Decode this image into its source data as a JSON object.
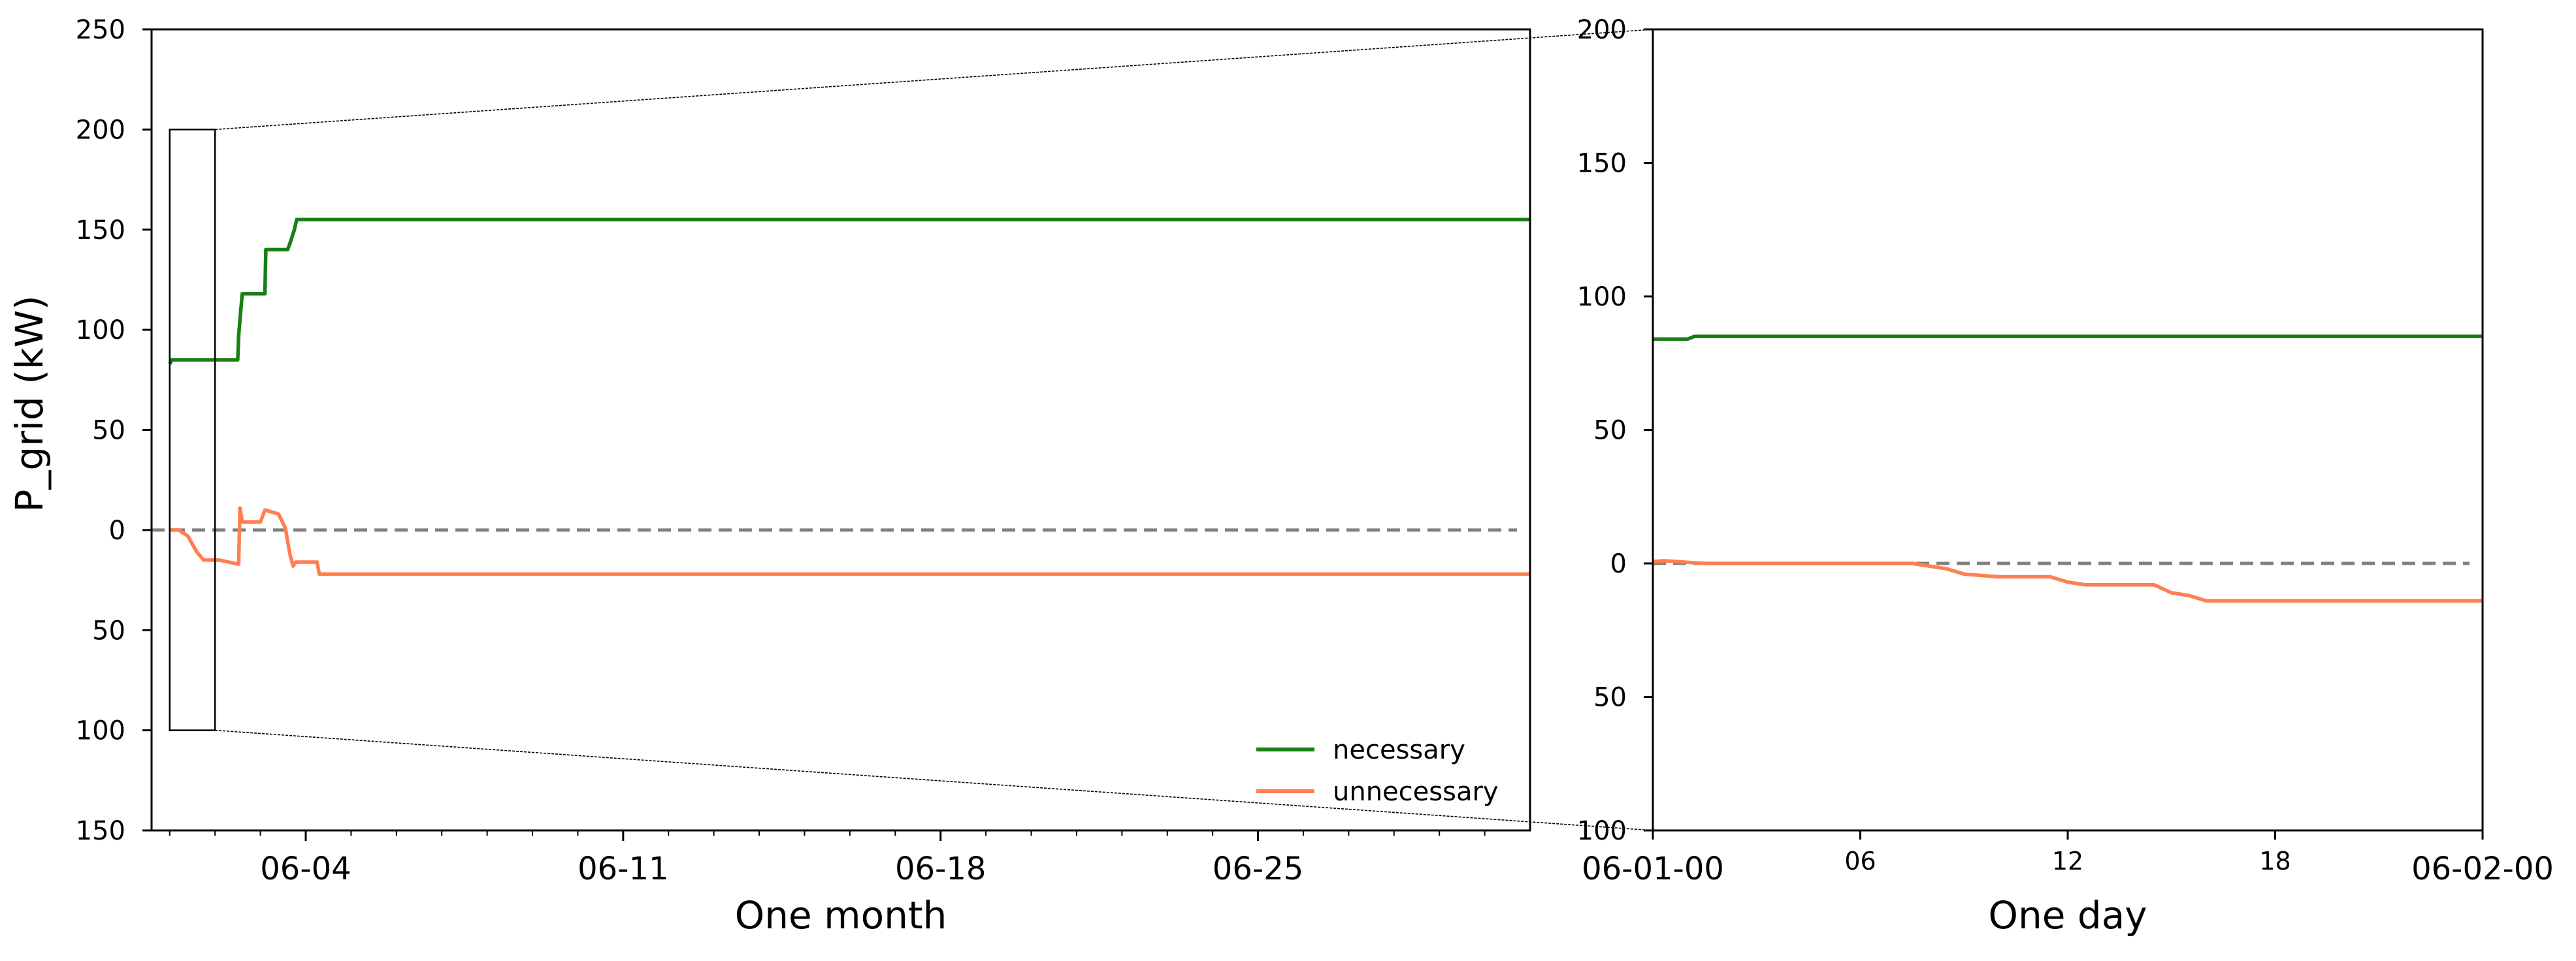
{
  "colors": {
    "necessary": "#1a7f12",
    "unnecessary": "#ff7f50",
    "zero_line": "#808080",
    "axes": "#000000"
  },
  "chart_data": [
    {
      "id": "month",
      "type": "line",
      "title": "",
      "xlabel": "One month",
      "ylabel": "P_grid (kW)",
      "x_unit": "day of June",
      "xlim": [
        0.6,
        31.0
      ],
      "ylim": [
        -150,
        250
      ],
      "yticks": [
        250,
        200,
        150,
        100,
        50,
        0,
        -50,
        -100,
        -150
      ],
      "ytick_labels": [
        "250",
        "200",
        "150",
        "100",
        "50",
        "0",
        "50",
        "100",
        "150"
      ],
      "xticks": [
        4,
        11,
        18,
        25
      ],
      "xtick_labels": [
        "06-04",
        "06-11",
        "06-18",
        "06-25"
      ],
      "grid": false,
      "legend": {
        "position": "bottom-right",
        "entries": [
          "necessary",
          "unnecessary"
        ]
      },
      "zero_line": {
        "y": 0,
        "style": "dashed"
      },
      "zoom_box": {
        "x_from": 1,
        "x_to": 2,
        "y_from": -100,
        "y_to": 200
      },
      "series": [
        {
          "name": "necessary",
          "points": [
            [
              1.0,
              83
            ],
            [
              1.05,
              85
            ],
            [
              2.1,
              85
            ],
            [
              2.5,
              85
            ],
            [
              2.52,
              97
            ],
            [
              2.55,
              105
            ],
            [
              2.6,
              118
            ],
            [
              3.1,
              118
            ],
            [
              3.12,
              140
            ],
            [
              3.6,
              140
            ],
            [
              3.65,
              143
            ],
            [
              3.75,
              150
            ],
            [
              3.8,
              155
            ],
            [
              31.0,
              155
            ]
          ]
        },
        {
          "name": "unnecessary",
          "points": [
            [
              1.0,
              0
            ],
            [
              1.2,
              0
            ],
            [
              1.4,
              -3
            ],
            [
              1.6,
              -11
            ],
            [
              1.75,
              -15
            ],
            [
              2.1,
              -15
            ],
            [
              2.5,
              -17
            ],
            [
              2.52,
              -17
            ],
            [
              2.55,
              11
            ],
            [
              2.6,
              4
            ],
            [
              3.0,
              4
            ],
            [
              3.1,
              10
            ],
            [
              3.4,
              8
            ],
            [
              3.55,
              1
            ],
            [
              3.65,
              -12
            ],
            [
              3.72,
              -18
            ],
            [
              3.78,
              -16
            ],
            [
              4.25,
              -16
            ],
            [
              4.3,
              -22
            ],
            [
              31.0,
              -22
            ]
          ]
        }
      ]
    },
    {
      "id": "day",
      "type": "line",
      "title": "",
      "xlabel": "One day",
      "ylabel": "",
      "x_unit": "hour of 2023-06-01",
      "xlim": [
        0,
        24
      ],
      "ylim": [
        -100,
        200
      ],
      "yticks": [
        200,
        150,
        100,
        50,
        0,
        -50,
        -100
      ],
      "ytick_labels": [
        "200",
        "150",
        "100",
        "50",
        "0",
        "50",
        "100"
      ],
      "xticks": [
        0,
        6,
        12,
        18,
        24
      ],
      "xtick_labels": [
        "06-01-00",
        "06",
        "12",
        "18",
        "06-02-00"
      ],
      "grid": false,
      "zero_line": {
        "y": 0,
        "style": "dashed"
      },
      "series": [
        {
          "name": "necessary",
          "points": [
            [
              -0.5,
              84
            ],
            [
              1.0,
              84
            ],
            [
              1.2,
              85
            ],
            [
              24.0,
              85
            ]
          ]
        },
        {
          "name": "unnecessary",
          "points": [
            [
              -0.5,
              0
            ],
            [
              0.3,
              1
            ],
            [
              1.5,
              0
            ],
            [
              7.5,
              0
            ],
            [
              8.0,
              -1
            ],
            [
              8.5,
              -2
            ],
            [
              9.0,
              -4
            ],
            [
              10.0,
              -5
            ],
            [
              11.5,
              -5
            ],
            [
              12.0,
              -7
            ],
            [
              12.5,
              -8
            ],
            [
              14.5,
              -8
            ],
            [
              15.0,
              -11
            ],
            [
              15.5,
              -12
            ],
            [
              16.0,
              -14
            ],
            [
              24.0,
              -14
            ]
          ]
        }
      ]
    }
  ]
}
